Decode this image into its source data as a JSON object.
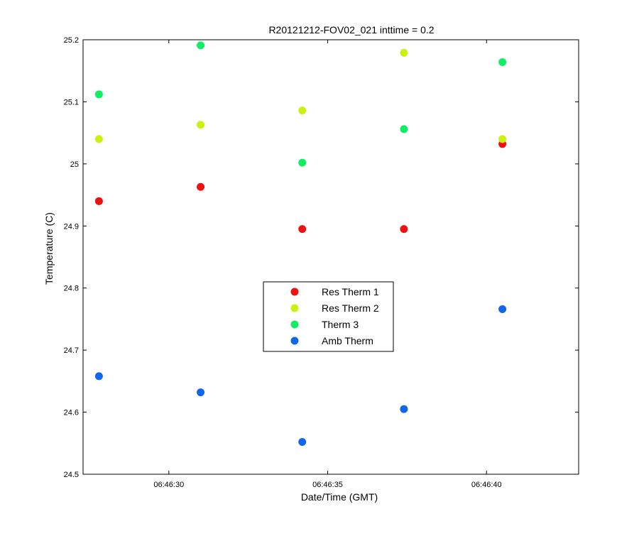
{
  "chart_data": {
    "type": "scatter",
    "title": "R20121212-FOV02_021 inttime = 0.2",
    "xlabel": "Date/Time (GMT)",
    "ylabel": "Temperature (C)",
    "x_times": [
      "06:46:27.8",
      "06:46:31.0",
      "06:46:34.2",
      "06:46:37.4",
      "06:46:40.5"
    ],
    "x_seconds": [
      27.8,
      31.0,
      34.2,
      37.4,
      40.5
    ],
    "xlim_seconds": [
      27.3,
      42.9
    ],
    "xticks": [
      {
        "label": "06:46:30",
        "value": 30
      },
      {
        "label": "06:46:35",
        "value": 35
      },
      {
        "label": "06:46:40",
        "value": 40
      }
    ],
    "ylim": [
      24.5,
      25.2
    ],
    "yticks": [
      {
        "label": "24.5",
        "value": 24.5
      },
      {
        "label": "24.6",
        "value": 24.6
      },
      {
        "label": "24.7",
        "value": 24.7
      },
      {
        "label": "24.8",
        "value": 24.8
      },
      {
        "label": "24.9",
        "value": 24.9
      },
      {
        "label": "25",
        "value": 25.0
      },
      {
        "label": "25.1",
        "value": 25.1
      },
      {
        "label": "25.2",
        "value": 25.2
      }
    ],
    "grid": false,
    "legend_position": "center",
    "series": [
      {
        "name": "Res Therm 1",
        "color": "#ee1111",
        "values": [
          24.94,
          24.963,
          24.895,
          24.895,
          25.032
        ]
      },
      {
        "name": "Res Therm 2",
        "color": "#ccf011",
        "values": [
          25.04,
          25.063,
          25.086,
          25.179,
          25.04
        ]
      },
      {
        "name": "Therm 3",
        "color": "#11ee66",
        "values": [
          25.112,
          25.191,
          25.002,
          25.056,
          25.164
        ]
      },
      {
        "name": "Amb Therm",
        "color": "#1166ee",
        "values": [
          24.658,
          24.632,
          24.552,
          24.605,
          24.766
        ]
      }
    ]
  }
}
